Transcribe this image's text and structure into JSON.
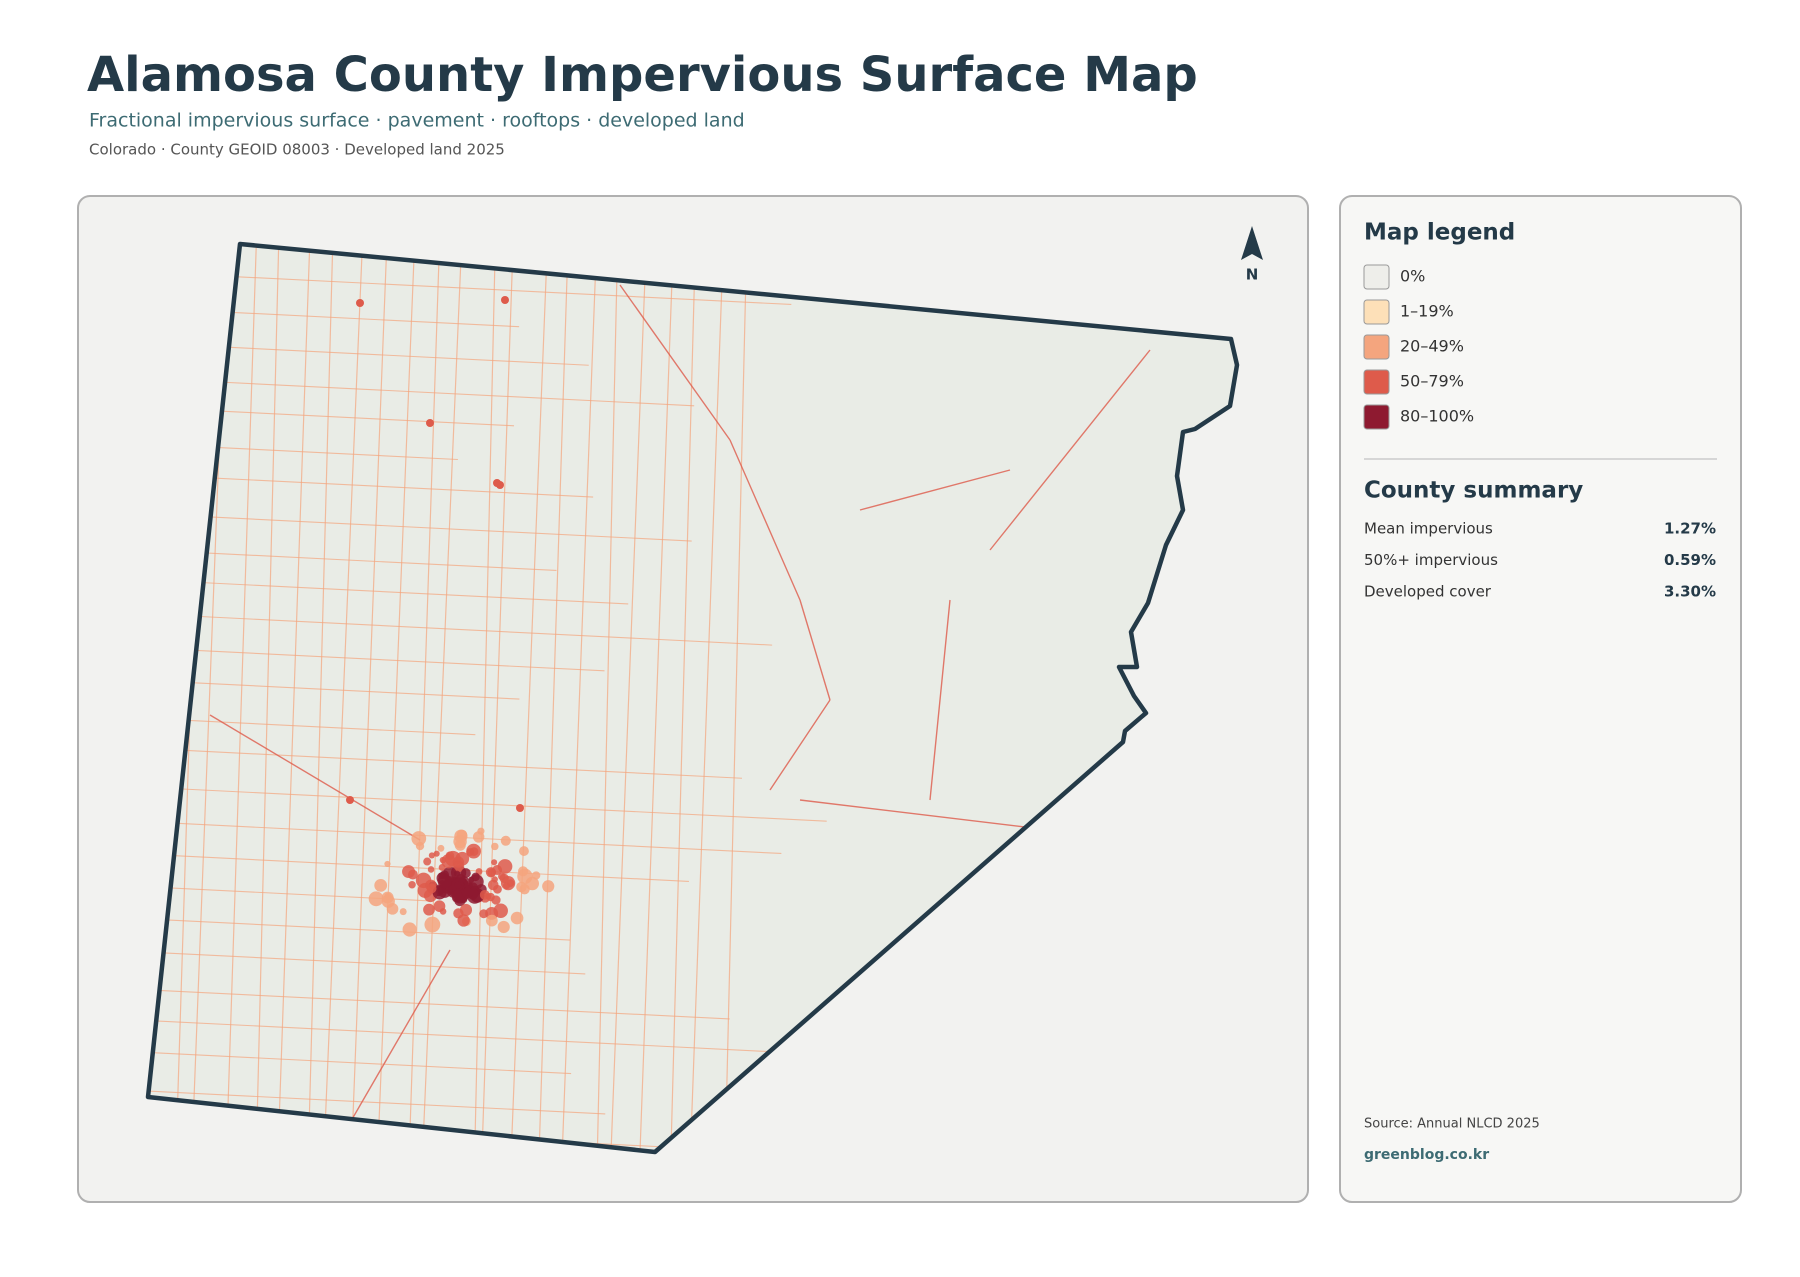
{
  "header": {
    "title": "Alamosa County Impervious Surface Map",
    "subtitle": "Fractional impervious surface · pavement · rooftops · developed land",
    "meta": "Colorado · County GEOID 08003 · Developed land 2025"
  },
  "map": {
    "north_label": "N"
  },
  "legend": {
    "title": "Map legend",
    "items": [
      {
        "label": "0%",
        "color": "#eeeeea"
      },
      {
        "label": "1–19%",
        "color": "#fde0b8"
      },
      {
        "label": "20–49%",
        "color": "#f4a57e"
      },
      {
        "label": "50–79%",
        "color": "#de5b4b"
      },
      {
        "label": "80–100%",
        "color": "#8e1a30"
      }
    ]
  },
  "summary": {
    "title": "County summary",
    "rows": [
      {
        "label": "Mean impervious",
        "value": "1.27%"
      },
      {
        "label": "50%+ impervious",
        "value": "0.59%"
      },
      {
        "label": "Developed cover",
        "value": "3.30%"
      }
    ]
  },
  "footer": {
    "source": "Source: Annual NLCD 2025",
    "credit": "greenblog.co.kr"
  }
}
